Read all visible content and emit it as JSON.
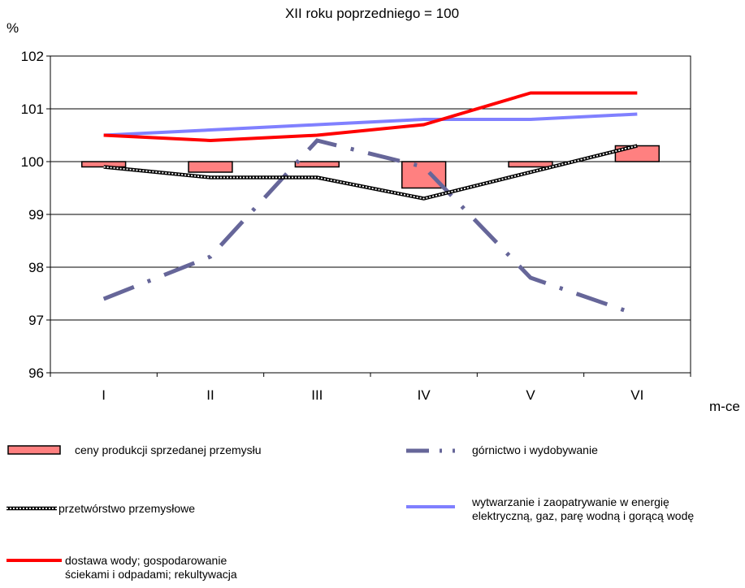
{
  "chart_data": {
    "type": "line",
    "title": "XII roku poprzedniego = 100",
    "ylabel": "%",
    "xlabel": "m-ce",
    "categories": [
      "I",
      "II",
      "III",
      "IV",
      "V",
      "VI"
    ],
    "ylim": [
      96,
      102
    ],
    "yticks": [
      "96",
      "97",
      "98",
      "99",
      "100",
      "101",
      "102"
    ],
    "grid": "horizontal",
    "legend_position": "bottom",
    "bar_baseline": 100,
    "series": [
      {
        "name": "ceny produkcji sprzedanej przemysłu",
        "kind": "bar",
        "color": "#ff8080",
        "values": [
          99.9,
          99.8,
          99.9,
          99.5,
          99.9,
          100.3
        ]
      },
      {
        "name": "górnictwo i wydobywanie",
        "kind": "line",
        "style": "dash-dot",
        "color": "#666699",
        "values": [
          97.4,
          98.2,
          100.4,
          99.9,
          97.8,
          97.1
        ]
      },
      {
        "name": "przetwórstwo przemysłowe",
        "kind": "line",
        "style": "checkered",
        "color": "#000000",
        "values": [
          99.9,
          99.7,
          99.7,
          99.3,
          99.8,
          100.3
        ]
      },
      {
        "name": "wytwarzanie i zaopatrywanie w energię elektryczną, gaz, parę wodną i gorącą wodę",
        "kind": "line",
        "style": "solid",
        "color": "#8080ff",
        "values": [
          100.5,
          100.6,
          100.7,
          100.8,
          100.8,
          100.9
        ]
      },
      {
        "name": "dostawa wody; gospodarowanie ściekami i odpadami; rekultywacja",
        "kind": "line",
        "style": "solid",
        "color": "#ff0000",
        "values": [
          100.5,
          100.4,
          100.5,
          100.7,
          101.3,
          101.3
        ]
      }
    ]
  },
  "legend": {
    "bar": "ceny produkcji sprzedanej przemysłu",
    "mining": "górnictwo i wydobywanie",
    "manufacturing": "przetwórstwo przemysłowe",
    "energy_line1": "wytwarzanie i zaopatrywanie w energię",
    "energy_line2": "elektryczną, gaz, parę wodną i gorącą wodę",
    "water_line1": "dostawa wody; gospodarowanie",
    "water_line2": "ściekami i odpadami; rekultywacja"
  }
}
